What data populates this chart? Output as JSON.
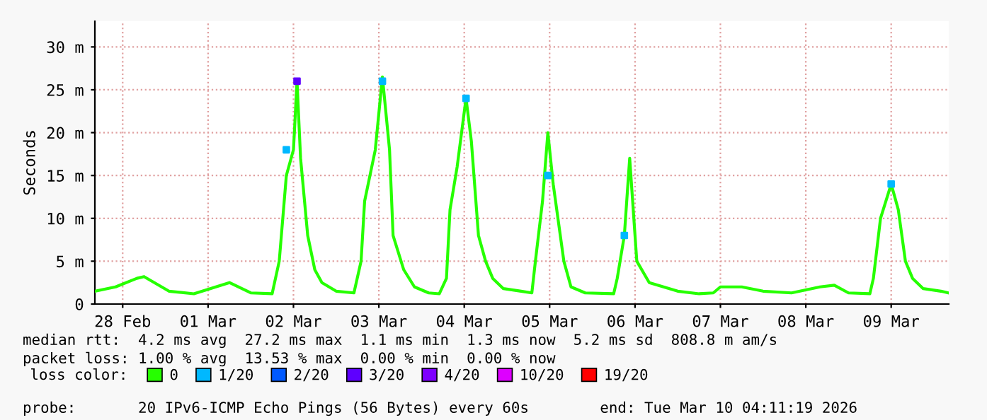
{
  "chart_data": {
    "type": "line",
    "ylabel": "Seconds",
    "legend_title": "loss color:",
    "x": [
      "2026-02-28T04:11",
      "2026-02-28T10:00",
      "2026-02-28T16:00",
      "2026-02-28T18:00",
      "2026-03-01T01:00",
      "2026-03-01T08:00",
      "2026-03-01T18:00",
      "2026-03-02T00:00",
      "2026-03-02T06:00",
      "2026-03-02T08:00",
      "2026-03-02T10:00",
      "2026-03-02T12:00",
      "2026-03-02T13:00",
      "2026-03-02T14:00",
      "2026-03-02T16:00",
      "2026-03-02T18:00",
      "2026-03-02T20:00",
      "2026-03-03T00:00",
      "2026-03-03T05:00",
      "2026-03-03T07:00",
      "2026-03-03T08:00",
      "2026-03-03T11:00",
      "2026-03-03T13:00",
      "2026-03-03T15:00",
      "2026-03-03T16:00",
      "2026-03-03T19:00",
      "2026-03-03T22:00",
      "2026-03-04T02:00",
      "2026-03-04T05:00",
      "2026-03-04T07:00",
      "2026-03-04T08:00",
      "2026-03-04T10:00",
      "2026-03-04T12:30",
      "2026-03-04T14:00",
      "2026-03-04T16:00",
      "2026-03-04T18:00",
      "2026-03-04T20:00",
      "2026-03-04T23:00",
      "2026-03-05T04:00",
      "2026-03-05T07:00",
      "2026-03-05T08:00",
      "2026-03-05T10:00",
      "2026-03-05T11:30",
      "2026-03-05T13:00",
      "2026-03-05T16:00",
      "2026-03-05T18:00",
      "2026-03-05T22:00",
      "2026-03-06T06:00",
      "2026-03-06T07:00",
      "2026-03-06T09:00",
      "2026-03-06T10:30",
      "2026-03-06T12:30",
      "2026-03-06T16:00",
      "2026-03-06T20:00",
      "2026-03-07T00:00",
      "2026-03-07T06:00",
      "2026-03-07T10:00",
      "2026-03-07T12:00",
      "2026-03-07T18:00",
      "2026-03-08T00:00",
      "2026-03-08T08:00",
      "2026-03-08T16:00",
      "2026-03-08T20:00",
      "2026-03-09T00:00",
      "2026-03-09T06:00",
      "2026-03-09T07:00",
      "2026-03-09T09:00",
      "2026-03-09T12:00",
      "2026-03-09T14:00",
      "2026-03-09T16:00",
      "2026-03-09T18:00",
      "2026-03-09T21:00",
      "2026-03-10T02:00",
      "2026-03-10T04:00"
    ],
    "series": [
      {
        "name": "0",
        "color": "#26ff00",
        "values": [
          1.5,
          2,
          3,
          3.2,
          1.5,
          1.2,
          2.5,
          1.3,
          1.2,
          5,
          15,
          18,
          26,
          17,
          8,
          4,
          2.5,
          1.5,
          1.3,
          5,
          12,
          18,
          26.5,
          18,
          8,
          4,
          2,
          1.3,
          1.2,
          3,
          11,
          16,
          24,
          19,
          8,
          5,
          3,
          1.8,
          1.5,
          1.3,
          5,
          12,
          20,
          14,
          5,
          2,
          1.3,
          1.2,
          3,
          8,
          17,
          5,
          2.5,
          2,
          1.5,
          1.2,
          1.3,
          2,
          2,
          1.5,
          1.3,
          2,
          2.2,
          1.3,
          1.2,
          3,
          10,
          14,
          11,
          5,
          3,
          1.8,
          1.5,
          1.3
        ]
      },
      {
        "name": "1/20",
        "color": "#00b8ff",
        "type": "scatter",
        "x": [
          "2026-03-02T10:00",
          "2026-03-03T13:00",
          "2026-03-04T12:30",
          "2026-03-05T11:30",
          "2026-03-06T09:00",
          "2026-03-09T12:00"
        ],
        "values": [
          18,
          26,
          24,
          15,
          8,
          14
        ]
      },
      {
        "name": "2/20",
        "color": "#0059ff",
        "type": "scatter",
        "values": [
          null,
          null,
          null,
          null,
          null,
          null,
          null,
          null,
          null,
          null,
          null,
          null,
          null,
          null,
          null,
          null,
          null,
          null,
          null,
          null,
          null,
          null,
          null,
          null,
          null,
          null,
          null,
          null,
          null,
          null,
          null,
          null,
          null,
          null,
          null,
          null,
          null,
          null,
          null,
          null,
          null,
          null,
          null,
          null,
          null,
          null,
          null,
          null,
          null,
          null,
          null,
          null,
          null,
          null,
          null,
          null,
          null,
          null,
          null,
          null,
          null,
          null,
          null,
          null,
          null,
          null,
          null,
          null,
          null,
          null,
          null,
          null,
          null,
          null
        ]
      },
      {
        "name": "3/20",
        "color": "#5e00ff",
        "type": "scatter",
        "x": [
          "2026-03-02T13:00"
        ],
        "values": [
          26
        ]
      },
      {
        "name": "4/20",
        "color": "#7e00ff",
        "type": "scatter",
        "values": [
          null,
          null,
          null,
          null,
          null,
          null,
          null,
          null,
          null,
          null,
          null,
          null,
          null,
          null,
          null,
          null,
          null,
          null,
          null,
          null,
          null,
          null,
          null,
          null,
          null,
          null,
          null,
          null,
          null,
          null,
          null,
          null,
          null,
          null,
          null,
          null,
          null,
          null,
          null,
          null,
          null,
          null,
          null,
          null,
          null,
          null,
          null,
          null,
          null,
          null,
          null,
          null,
          null,
          null,
          null,
          null,
          null,
          null,
          null,
          null,
          null,
          null,
          null,
          null,
          null,
          null,
          null,
          null,
          null,
          null,
          null,
          null,
          null,
          null
        ]
      },
      {
        "name": "10/20",
        "color": "#dd00ff",
        "type": "scatter",
        "values": [
          null,
          null,
          null,
          null,
          null,
          null,
          null,
          null,
          null,
          null,
          null,
          null,
          null,
          null,
          null,
          null,
          null,
          null,
          null,
          null,
          null,
          null,
          null,
          null,
          null,
          null,
          null,
          null,
          null,
          null,
          null,
          null,
          null,
          null,
          null,
          null,
          null,
          null,
          null,
          null,
          null,
          null,
          null,
          null,
          null,
          null,
          null,
          null,
          null,
          null,
          null,
          null,
          null,
          null,
          null,
          null,
          null,
          null,
          null,
          null,
          null,
          null,
          null,
          null,
          null,
          null,
          null,
          null,
          null,
          null,
          null,
          null,
          null,
          null
        ]
      },
      {
        "name": "19/20",
        "color": "#ff0000",
        "type": "scatter",
        "values": [
          null,
          null,
          null,
          null,
          null,
          null,
          null,
          null,
          null,
          null,
          null,
          null,
          null,
          null,
          null,
          null,
          null,
          null,
          null,
          null,
          null,
          null,
          null,
          null,
          null,
          null,
          null,
          null,
          null,
          null,
          null,
          null,
          null,
          null,
          null,
          null,
          null,
          null,
          null,
          null,
          null,
          null,
          null,
          null,
          null,
          null,
          null,
          null,
          null,
          null,
          null,
          null,
          null,
          null,
          null,
          null,
          null,
          null,
          null,
          null,
          null,
          null,
          null,
          null,
          null,
          null,
          null,
          null,
          null,
          null,
          null,
          null,
          null,
          null
        ]
      }
    ],
    "xlim": [
      "2026-02-28T04:11",
      "2026-03-10T04:11"
    ],
    "xticks": [
      {
        "value": "2026-02-28T12:00",
        "label": "28 Feb"
      },
      {
        "value": "2026-03-01T12:00",
        "label": "01 Mar"
      },
      {
        "value": "2026-03-02T12:00",
        "label": "02 Mar"
      },
      {
        "value": "2026-03-03T12:00",
        "label": "03 Mar"
      },
      {
        "value": "2026-03-04T12:00",
        "label": "04 Mar"
      },
      {
        "value": "2026-03-05T12:00",
        "label": "05 Mar"
      },
      {
        "value": "2026-03-06T12:00",
        "label": "06 Mar"
      },
      {
        "value": "2026-03-07T12:00",
        "label": "07 Mar"
      },
      {
        "value": "2026-03-08T12:00",
        "label": "08 Mar"
      },
      {
        "value": "2026-03-09T12:00",
        "label": "09 Mar"
      }
    ],
    "ylim": [
      0,
      33
    ],
    "yticks": [
      0,
      {
        "value": 5,
        "label": "5 m"
      },
      {
        "value": 10,
        "label": "10 m"
      },
      {
        "value": 15,
        "label": "15 m"
      },
      {
        "value": 20,
        "label": "20 m"
      },
      {
        "value": 25,
        "label": "25 m"
      },
      {
        "value": 30,
        "label": "30 m"
      }
    ],
    "grid": true,
    "legend": "bottom",
    "annotations": [
      "median rtt:  4.2 ms avg  27.2 ms max  1.1 ms min  1.3 ms now  5.2 ms sd  808.8 m am/s",
      "packet loss: 1.00 % avg  13.53 % max  0.00 % min  0.00 % now",
      "probe:       20 IPv6-ICMP Echo Pings (56 Bytes) every 60s        end: Tue Mar 10 04:11:19 2026"
    ]
  }
}
